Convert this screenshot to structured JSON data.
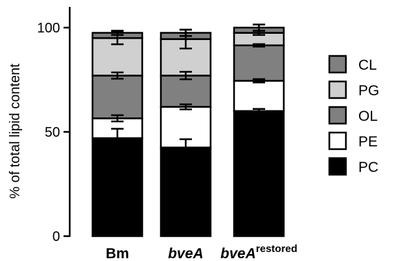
{
  "chart_data": {
    "type": "bar",
    "stacked": true,
    "ylabel": "% of total lipid content",
    "xlabel": "",
    "ylim": [
      0,
      100
    ],
    "yticks": [
      0,
      50,
      100
    ],
    "grid": false,
    "legend_position": "right",
    "categories": [
      "Bm",
      "bveA",
      "bveArestored"
    ],
    "category_labels": [
      {
        "base": "Bm",
        "italic": false,
        "sup": ""
      },
      {
        "base": "bveA",
        "italic": true,
        "sup": ""
      },
      {
        "base": "bveA",
        "italic": true,
        "sup": "restored"
      }
    ],
    "series": [
      {
        "name": "PC",
        "color": "#000000",
        "values": [
          47,
          42.5,
          60
        ],
        "errors": [
          4.5,
          4,
          1
        ]
      },
      {
        "name": "PE",
        "color": "#ffffff",
        "values": [
          9.5,
          19.5,
          14.5
        ],
        "errors": [
          1.5,
          1.2,
          0.8
        ]
      },
      {
        "name": "OL",
        "color": "#808080",
        "values": [
          20.5,
          15,
          17
        ],
        "errors": [
          1.5,
          1.8,
          0.6
        ]
      },
      {
        "name": "PG",
        "color": "#d0d0d0",
        "values": [
          18,
          17.5,
          6
        ],
        "errors": [
          3,
          4.5,
          1
        ]
      },
      {
        "name": "CL",
        "color": "#808080",
        "values": [
          2.5,
          3,
          2.5
        ],
        "errors": [
          1,
          1.5,
          1.5
        ]
      }
    ],
    "legend_order": [
      "CL",
      "PG",
      "OL",
      "PE",
      "PC"
    ]
  }
}
